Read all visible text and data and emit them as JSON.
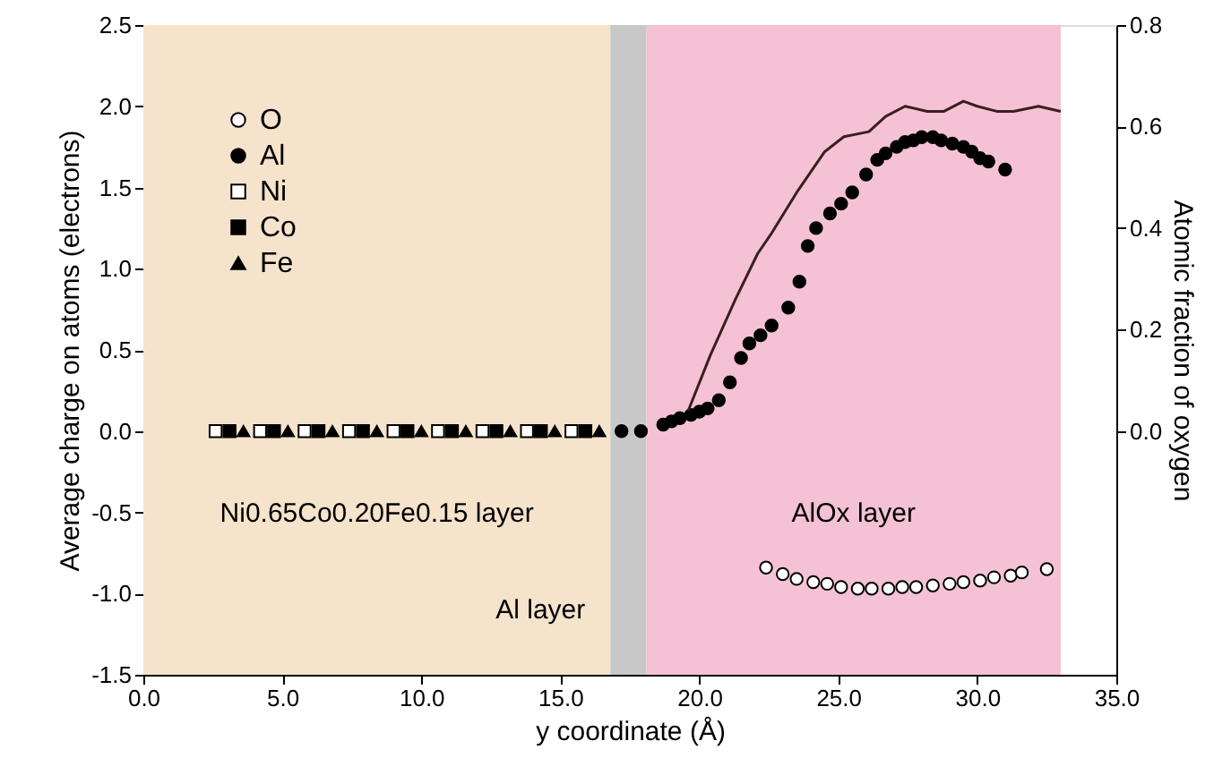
{
  "chart_data": {
    "type": "scatter",
    "xlabel": "y coordinate (Å)",
    "ylabel": "Average charge on atoms (electrons)",
    "y2label": "Atomic fraction of oxygen",
    "xlim": [
      0,
      35
    ],
    "xticks": [
      {
        "value": 0,
        "label": "0.0"
      },
      {
        "value": 5,
        "label": "5.0"
      },
      {
        "value": 10,
        "label": "10.0"
      },
      {
        "value": 15,
        "label": "15.0"
      },
      {
        "value": 20,
        "label": "20.0"
      },
      {
        "value": 25,
        "label": "25.0"
      },
      {
        "value": 30,
        "label": "30.0"
      },
      {
        "value": 35,
        "label": "35.0"
      }
    ],
    "ylim": [
      -1.5,
      2.5
    ],
    "yticks": [
      {
        "value": -1.5,
        "label": "-1.5"
      },
      {
        "value": -1,
        "label": "-1.0"
      },
      {
        "value": -0.5,
        "label": "-0.5"
      },
      {
        "value": 0,
        "label": "0.0"
      },
      {
        "value": 0.5,
        "label": "0.5"
      },
      {
        "value": 1,
        "label": "1.0"
      },
      {
        "value": 1.5,
        "label": "1.5"
      },
      {
        "value": 2,
        "label": "2.0"
      },
      {
        "value": 2.5,
        "label": "2.5"
      }
    ],
    "y2lim": [
      -0.48,
      0.8
    ],
    "y2ticks": [
      {
        "value": 0,
        "label": "0.0"
      },
      {
        "value": 0.2,
        "label": "0.2"
      },
      {
        "value": 0.4,
        "label": "0.4"
      },
      {
        "value": 0.6,
        "label": "0.6"
      },
      {
        "value": 0.8,
        "label": "0.8"
      }
    ],
    "grid": false,
    "legend": "top left",
    "bands": [
      {
        "axis": "x",
        "from": 0,
        "to": 16.8,
        "color": "#f5e3cc",
        "label": "Ni0.65Co0.20Fe0.15 layer"
      },
      {
        "axis": "x",
        "from": 16.8,
        "to": 18.1,
        "color": "#c8c8c8",
        "label": "Al layer"
      },
      {
        "axis": "x",
        "from": 18.1,
        "to": 33.0,
        "color": "#f4c2d4",
        "label": "AlOx layer"
      }
    ],
    "series": [
      {
        "name": "O",
        "marker": "circle",
        "color": "#ffffff",
        "x": [
          22.4,
          23.0,
          23.5,
          24.1,
          24.6,
          25.1,
          25.7,
          26.2,
          26.8,
          27.3,
          27.8,
          28.4,
          29.0,
          29.5,
          30.1,
          30.6,
          31.2,
          31.6,
          32.5
        ],
        "values": [
          -0.84,
          -0.88,
          -0.91,
          -0.93,
          -0.94,
          -0.96,
          -0.97,
          -0.97,
          -0.97,
          -0.96,
          -0.96,
          -0.95,
          -0.94,
          -0.93,
          -0.92,
          -0.9,
          -0.89,
          -0.87,
          -0.85
        ]
      },
      {
        "name": "Al",
        "marker": "circle",
        "color": "#000000",
        "x": [
          17.2,
          17.9,
          18.7,
          19.0,
          19.3,
          19.7,
          20.0,
          20.3,
          20.7,
          21.1,
          21.5,
          21.8,
          22.2,
          22.6,
          23.2,
          23.6,
          23.9,
          24.2,
          24.7,
          25.1,
          25.5,
          26.0,
          26.4,
          26.7,
          27.1,
          27.4,
          27.7,
          28.0,
          28.4,
          28.7,
          29.1,
          29.5,
          29.8,
          30.1,
          30.4,
          31.0
        ],
        "values": [
          0,
          0,
          0.04,
          0.06,
          0.08,
          0.1,
          0.12,
          0.14,
          0.19,
          0.3,
          0.45,
          0.54,
          0.59,
          0.65,
          0.76,
          0.92,
          1.14,
          1.25,
          1.34,
          1.4,
          1.47,
          1.58,
          1.67,
          1.71,
          1.75,
          1.78,
          1.79,
          1.81,
          1.81,
          1.79,
          1.77,
          1.75,
          1.72,
          1.68,
          1.66,
          1.61
        ]
      },
      {
        "name": "Ni",
        "marker": "square",
        "color": "#ffffff",
        "x": [
          2.6,
          4.2,
          5.8,
          7.4,
          9.0,
          10.6,
          12.2,
          13.8,
          15.4
        ],
        "values": [
          0,
          0,
          0,
          0,
          0,
          0,
          0,
          0,
          0
        ]
      },
      {
        "name": "Co",
        "marker": "square",
        "color": "#000000",
        "x": [
          3.1,
          4.7,
          6.3,
          7.9,
          9.5,
          11.1,
          12.7,
          14.3,
          15.9
        ],
        "values": [
          0,
          0,
          0,
          0,
          0,
          0,
          0,
          0,
          0
        ]
      },
      {
        "name": "Fe",
        "marker": "triangle",
        "color": "#000000",
        "x": [
          3.6,
          5.2,
          6.8,
          8.4,
          10.0,
          11.6,
          13.2,
          14.8,
          16.4
        ],
        "values": [
          0,
          0,
          0,
          0,
          0,
          0,
          0,
          0,
          0
        ]
      },
      {
        "type": "line",
        "axis": "y2",
        "marker": "none",
        "line_style": "solid",
        "color": "#3a1f1f",
        "x": [
          19.6,
          20.4,
          21.3,
          22.1,
          22.6,
          23.5,
          24.5,
          25.2,
          26.1,
          26.7,
          27.4,
          28.2,
          28.8,
          29.5,
          30.0,
          30.7,
          31.3,
          32.2,
          33.0
        ],
        "values": [
          0.04,
          0.15,
          0.26,
          0.35,
          0.39,
          0.47,
          0.55,
          0.58,
          0.59,
          0.62,
          0.64,
          0.63,
          0.63,
          0.65,
          0.64,
          0.63,
          0.63,
          0.64,
          0.63
        ]
      }
    ]
  }
}
